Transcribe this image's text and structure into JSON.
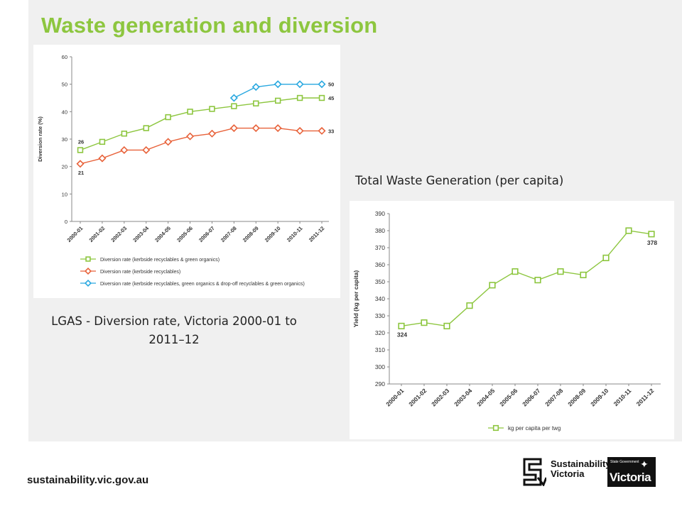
{
  "slide": {
    "title": "Waste generation and diversion",
    "footer_url": "sustainability.vic.gov.au",
    "caption_left": "LGAS - Diversion rate, Victoria 2000-01 to 2011–12",
    "caption_right": "Total Waste Generation (per capita)",
    "logo_sv_line1": "Sustainability",
    "logo_sv_line2": "Victoria",
    "logo_vic_small": "State Government",
    "logo_vic_text": "Victoria"
  },
  "chart_data": [
    {
      "type": "line",
      "ylabel": "Diversion rate (%)",
      "xlabel": "",
      "ylim": [
        0,
        60
      ],
      "yticks": [
        0,
        10,
        20,
        30,
        40,
        50,
        60
      ],
      "grid": false,
      "legend_position": "bottom",
      "categories": [
        "2000-01",
        "2001-02",
        "2002-03",
        "2003-04",
        "2004-05",
        "2005-06",
        "2006-07",
        "2007-08",
        "2008-09",
        "2009-10",
        "2010-11",
        "2011-12"
      ],
      "series": [
        {
          "name": "Diversion rate (kerbside recyclables & green organics)",
          "color": "#8dc63f",
          "marker": "square",
          "values": [
            26,
            29,
            32,
            34,
            38,
            40,
            41,
            42,
            43,
            44,
            45,
            45
          ],
          "labels": [
            {
              "index": 0,
              "text": "26",
              "pos": "above"
            },
            {
              "index": 11,
              "text": "45",
              "pos": "right"
            }
          ]
        },
        {
          "name": "Diversion rate (kerbside recyclables)",
          "color": "#e8623a",
          "marker": "diamond",
          "values": [
            21,
            23,
            26,
            26,
            29,
            31,
            32,
            34,
            34,
            34,
            33,
            33
          ],
          "labels": [
            {
              "index": 0,
              "text": "21",
              "pos": "below"
            },
            {
              "index": 11,
              "text": "33",
              "pos": "right"
            }
          ]
        },
        {
          "name": "Diversion rate (kerbside recyclables, green organics & drop-off recyclables & green organics)",
          "color": "#29a8e0",
          "marker": "diamond",
          "values": [
            null,
            null,
            null,
            null,
            null,
            null,
            null,
            45,
            49,
            50,
            50,
            50
          ],
          "labels": [
            {
              "index": 11,
              "text": "50",
              "pos": "right"
            }
          ]
        }
      ]
    },
    {
      "type": "line",
      "ylabel": "Yield (kg per capita)",
      "xlabel": "",
      "ylim": [
        290,
        390
      ],
      "yticks": [
        290,
        300,
        310,
        320,
        330,
        340,
        350,
        360,
        370,
        380,
        390
      ],
      "grid": false,
      "legend_position": "bottom",
      "categories": [
        "2000-01",
        "2001-02",
        "2002-03",
        "2003-04",
        "2004-05",
        "2005-06",
        "2006-07",
        "2007-08",
        "2008-09",
        "2009-10",
        "2010-11",
        "2011-12"
      ],
      "series": [
        {
          "name": "kg per capita per twg",
          "color": "#8dc63f",
          "marker": "square",
          "values": [
            324,
            326,
            324,
            336,
            348,
            356,
            351,
            356,
            354,
            364,
            380,
            378
          ],
          "labels": [
            {
              "index": 0,
              "text": "324",
              "pos": "below"
            },
            {
              "index": 11,
              "text": "378",
              "pos": "below"
            }
          ]
        }
      ]
    }
  ]
}
